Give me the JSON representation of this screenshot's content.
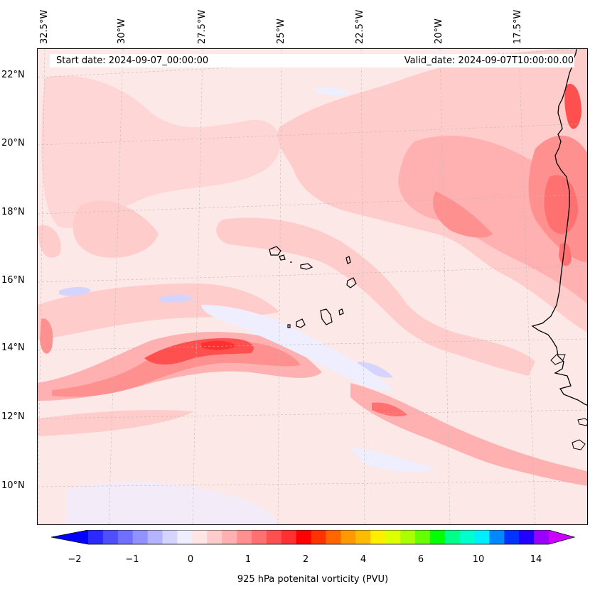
{
  "header": {
    "start_date": "Start date: 2024-09-07_00:00:00",
    "valid_date": "Valid_date: 2024-09-07T10:00:00.00"
  },
  "longitude_labels": [
    "32.5°W",
    "30°W",
    "27.5°W",
    "25°W",
    "22.5°W",
    "20°W",
    "17.5°W"
  ],
  "latitude_labels": [
    "22°N",
    "20°N",
    "18°N",
    "16°N",
    "14°N",
    "12°N",
    "10°N"
  ],
  "colorbar": {
    "label": "925 hPa potenital vorticity (PVU)",
    "tick_labels": [
      "−2",
      "−1",
      "0",
      "1",
      "2",
      "4",
      "6",
      "10",
      "14"
    ],
    "colors": [
      "#0000ff",
      "#2a2aff",
      "#4f4fff",
      "#7070ff",
      "#9191ff",
      "#b3b3ff",
      "#d4d4ff",
      "#eeeeff",
      "#ffe6e6",
      "#ffcccc",
      "#ffb0b0",
      "#ff9090",
      "#ff7070",
      "#ff5050",
      "#ff3030",
      "#ff0000",
      "#ff3300",
      "#ff6600",
      "#ff9900",
      "#ffbb00",
      "#ffee00",
      "#ddff00",
      "#aaff00",
      "#66ff00",
      "#00ff00",
      "#00ff88",
      "#00ffcc",
      "#00eeff",
      "#0088ff",
      "#0033ff",
      "#2200ff",
      "#9900ff",
      "#cc00ff"
    ]
  },
  "palette": {
    "background": "#fde8e8",
    "light_pink": "#ffcccc",
    "pink": "#ffb0b0",
    "red_mid": "#ff7070",
    "red_strong": "#ff3030",
    "light_blue": "#eeeeff",
    "blue": "#d4d4ff"
  }
}
